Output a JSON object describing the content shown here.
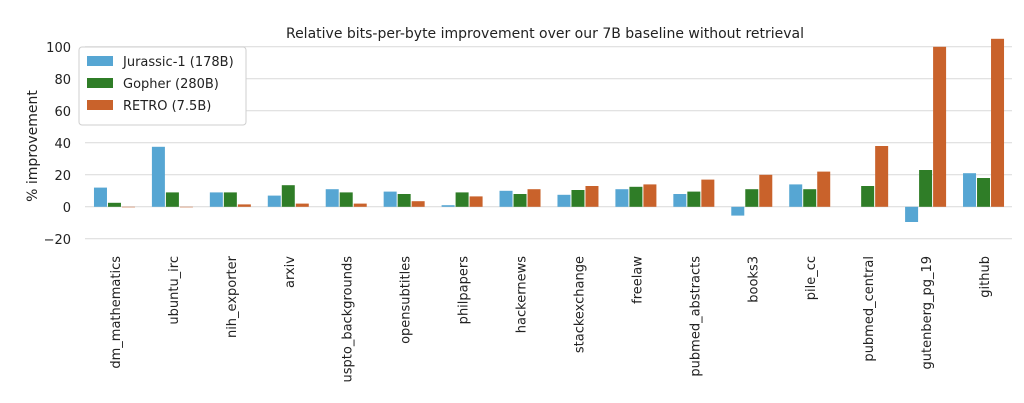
{
  "chart_data": {
    "type": "bar",
    "title": "Relative bits-per-byte improvement over our 7B baseline without retrieval",
    "ylabel": "% improvement",
    "xlabel": "",
    "ylim": [
      -22,
      103
    ],
    "yticks": [
      -20,
      0,
      20,
      40,
      60,
      80,
      100
    ],
    "grid": true,
    "legend_position": "top-left",
    "categories": [
      "dm_mathematics",
      "ubuntu_irc",
      "nih_exporter",
      "arxiv",
      "uspto_backgrounds",
      "opensubtitles",
      "philpapers",
      "hackernews",
      "stackexchange",
      "freelaw",
      "pubmed_abstracts",
      "books3",
      "pile_cc",
      "pubmed_central",
      "gutenberg_pg_19",
      "github"
    ],
    "series": [
      {
        "name": "Jurassic-1 (178B)",
        "color": "#56a6d3",
        "values": [
          12,
          37.5,
          9,
          7,
          11,
          9.5,
          1,
          10,
          7.5,
          11,
          8,
          -5.5,
          14,
          null,
          -9.5,
          21
        ]
      },
      {
        "name": "Gopher (280B)",
        "color": "#2f7d27",
        "values": [
          2.5,
          9,
          9,
          13.5,
          9,
          8,
          9,
          8,
          10.5,
          12.5,
          9.5,
          11,
          11,
          13,
          23,
          18
        ]
      },
      {
        "name": "RETRO (7.5B)",
        "color": "#c9622b",
        "values": [
          0,
          0,
          1.5,
          2,
          2,
          3.5,
          6.5,
          11,
          13,
          14,
          17,
          20,
          22,
          38,
          100,
          105
        ]
      }
    ]
  }
}
